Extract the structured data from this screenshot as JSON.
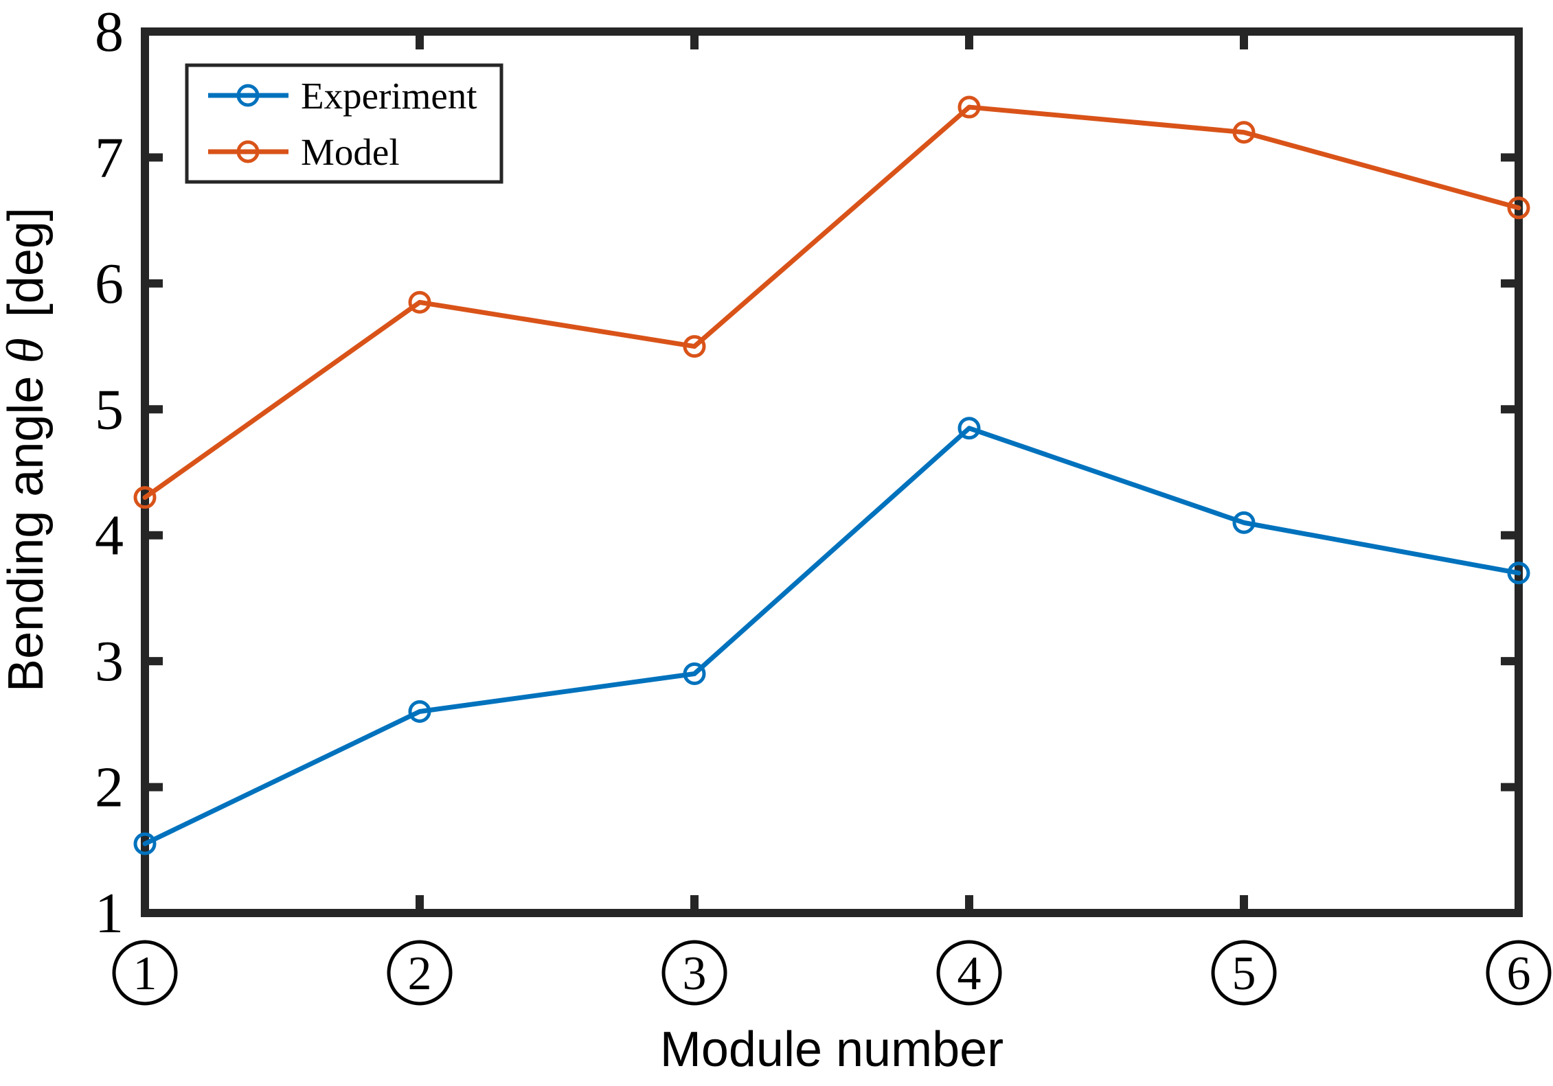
{
  "figure": {
    "background": "#ffffff",
    "axis_color": "#262626",
    "text_color": "#000000"
  },
  "chart_data": {
    "type": "line",
    "title": "",
    "xlabel": "Module number",
    "ylabel": "Bending angle θ [deg]",
    "ylabel_parts": {
      "prefix": "Bending angle",
      "symbol": "θ",
      "suffix": "[deg]"
    },
    "x": [
      1,
      2,
      3,
      4,
      5,
      6
    ],
    "x_tick_labels": [
      "1",
      "2",
      "3",
      "4",
      "5",
      "6"
    ],
    "x_tick_style": "circled-number",
    "xlim": [
      1,
      6
    ],
    "yticks": [
      1,
      2,
      3,
      4,
      5,
      6,
      7,
      8
    ],
    "ylim": [
      1,
      8
    ],
    "grid": false,
    "box": true,
    "tick_direction": "in",
    "legend_position": "top-left",
    "series": [
      {
        "name": "Experiment",
        "color": "#0072BD",
        "marker": "circle",
        "values": [
          1.55,
          2.6,
          2.9,
          4.85,
          4.1,
          3.7
        ]
      },
      {
        "name": "Model",
        "color": "#D95319",
        "marker": "circle",
        "values": [
          4.3,
          5.85,
          5.5,
          7.4,
          7.2,
          6.6
        ]
      }
    ]
  }
}
